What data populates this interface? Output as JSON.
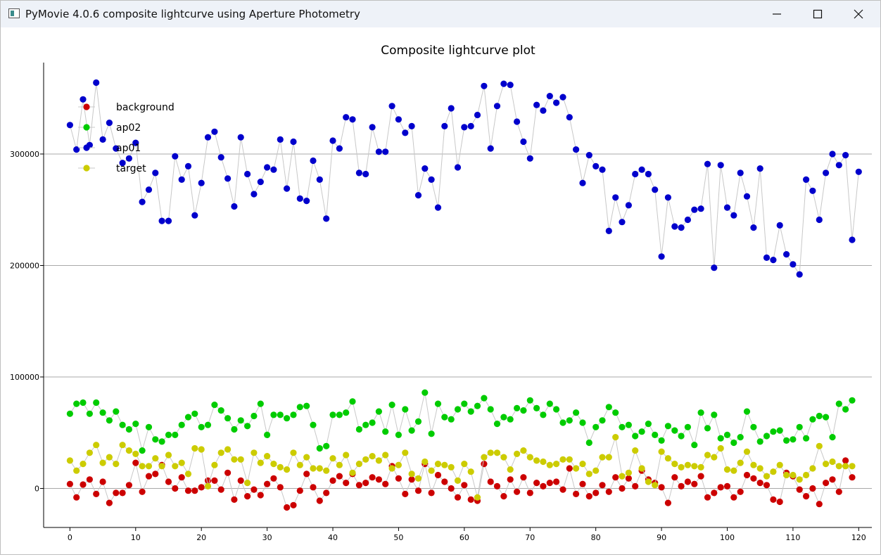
{
  "window": {
    "title": "PyMovie 4.0.6 composite lightcurve using Aperture Photometry",
    "controls": [
      "minimize-icon",
      "maximize-icon",
      "close-icon"
    ]
  },
  "chart_data": {
    "type": "scatter",
    "title": "Composite lightcurve plot",
    "xlabel": "",
    "ylabel": "",
    "xlim": [
      -4,
      122
    ],
    "ylim": [
      -35000,
      382000
    ],
    "xticks": [
      0,
      10,
      20,
      30,
      40,
      50,
      60,
      70,
      80,
      90,
      100,
      110,
      120
    ],
    "yticks": [
      0,
      100000,
      200000,
      300000
    ],
    "grid": "horizontal",
    "legend": "top-left",
    "connect_points": true,
    "line_color": "#c8c8c8",
    "series": [
      {
        "name": "background",
        "color": "#cc0000",
        "values": [
          4000,
          -8000,
          3500,
          8000,
          -5000,
          6000,
          -13000,
          -4000,
          -4000,
          3000,
          23000,
          -3000,
          11000,
          13000,
          21000,
          6000,
          0,
          10000,
          -2000,
          -2000,
          1000,
          7000,
          7000,
          -1000,
          14000,
          -10000,
          7000,
          -7000,
          -1000,
          -6000,
          4000,
          9000,
          1000,
          -17000,
          -15000,
          -2000,
          13000,
          1000,
          -11000,
          -4000,
          7000,
          11000,
          5000,
          13000,
          3000,
          5000,
          10000,
          8000,
          4000,
          20000,
          9000,
          -5000,
          8000,
          -2000,
          22000,
          -4000,
          12000,
          6000,
          0,
          -8000,
          3000,
          -10000,
          -11000,
          22000,
          6000,
          2000,
          -7000,
          8000,
          -3000,
          10000,
          -4000,
          5000,
          2000,
          5000,
          6000,
          -1000,
          18000,
          -5000,
          4000,
          -7000,
          -4000,
          3000,
          -3000,
          10000,
          0,
          9000,
          2000,
          16000,
          8000,
          5000,
          1000,
          -13000,
          10000,
          2000,
          6000,
          4000,
          11000,
          -8000,
          -4000,
          1000,
          2000,
          -8000,
          -3000,
          12000,
          9000,
          5000,
          3000,
          -10000,
          -12000,
          14000,
          11000,
          -1000,
          -7000,
          0,
          -14000,
          5000,
          8000,
          -3000,
          25000,
          10000
        ]
      },
      {
        "name": "ap02",
        "color": "#00cc00",
        "values": [
          67000,
          76000,
          77000,
          67000,
          77000,
          68000,
          61000,
          69000,
          57000,
          53000,
          58000,
          34000,
          55000,
          44000,
          42000,
          48000,
          48000,
          57000,
          64000,
          67000,
          55000,
          57000,
          75000,
          70000,
          63000,
          53000,
          61000,
          56000,
          65000,
          76000,
          48000,
          66000,
          66000,
          63000,
          66000,
          73000,
          74000,
          57000,
          36000,
          38000,
          66000,
          66000,
          68000,
          78000,
          53000,
          57000,
          59000,
          69000,
          51000,
          75000,
          48000,
          71000,
          52000,
          60000,
          86000,
          49000,
          76000,
          64000,
          62000,
          71000,
          76000,
          69000,
          74000,
          81000,
          71000,
          58000,
          64000,
          62000,
          72000,
          70000,
          79000,
          72000,
          66000,
          76000,
          71000,
          59000,
          61000,
          68000,
          59000,
          41000,
          55000,
          61000,
          73000,
          68000,
          55000,
          57000,
          47000,
          51000,
          58000,
          48000,
          43000,
          56000,
          52000,
          47000,
          55000,
          39000,
          68000,
          54000,
          66000,
          45000,
          48000,
          41000,
          46000,
          69000,
          55000,
          42000,
          47000,
          51000,
          52000,
          43000,
          44000,
          55000,
          45000,
          62000,
          65000,
          64000,
          46000,
          76000,
          71000,
          79000
        ]
      },
      {
        "name": "ap01",
        "color": "#0000cc",
        "values": [
          326000,
          304000,
          349000,
          308000,
          364000,
          313000,
          328000,
          305000,
          292000,
          296000,
          310000,
          257000,
          268000,
          283000,
          240000,
          240000,
          298000,
          277000,
          289000,
          245000,
          274000,
          315000,
          320000,
          297000,
          278000,
          253000,
          315000,
          282000,
          264000,
          275000,
          288000,
          286000,
          313000,
          269000,
          311000,
          260000,
          258000,
          294000,
          277000,
          242000,
          312000,
          305000,
          333000,
          331000,
          283000,
          282000,
          324000,
          302000,
          302000,
          343000,
          331000,
          319000,
          325000,
          263000,
          287000,
          277000,
          252000,
          325000,
          341000,
          288000,
          324000,
          325000,
          335000,
          361000,
          305000,
          343000,
          363000,
          362000,
          329000,
          311000,
          296000,
          344000,
          339000,
          352000,
          346000,
          351000,
          333000,
          304000,
          274000,
          299000,
          289000,
          286000,
          231000,
          261000,
          239000,
          254000,
          282000,
          286000,
          282000,
          268000,
          208000,
          261000,
          235000,
          234000,
          241000,
          250000,
          251000,
          291000,
          198000,
          290000,
          252000,
          245000,
          283000,
          262000,
          234000,
          287000,
          207000,
          205000,
          236000,
          210000,
          201000,
          192000,
          277000,
          267000,
          241000,
          283000,
          300000,
          290000,
          299000,
          223000,
          284000
        ]
      },
      {
        "name": "target",
        "color": "#cccc00",
        "values": [
          25000,
          16000,
          22000,
          32000,
          39000,
          23000,
          28000,
          22000,
          39000,
          34000,
          31000,
          20000,
          20000,
          27000,
          20000,
          30000,
          20000,
          23000,
          13000,
          36000,
          35000,
          2000,
          21000,
          32000,
          35000,
          26000,
          26000,
          5000,
          32000,
          23000,
          29000,
          22000,
          19000,
          17000,
          32000,
          21000,
          28000,
          18000,
          18000,
          16000,
          27000,
          21000,
          30000,
          14000,
          22000,
          26000,
          29000,
          25000,
          30000,
          18000,
          21000,
          32000,
          13000,
          9000,
          24000,
          16000,
          22000,
          21000,
          19000,
          7000,
          22000,
          15000,
          -8000,
          28000,
          32000,
          32000,
          28000,
          17000,
          31000,
          34000,
          28000,
          25000,
          24000,
          21000,
          22000,
          26000,
          26000,
          18000,
          22000,
          13000,
          16000,
          28000,
          28000,
          46000,
          11000,
          14000,
          34000,
          18000,
          6000,
          3000,
          33000,
          27000,
          22000,
          19000,
          21000,
          20000,
          19000,
          30000,
          28000,
          36000,
          17000,
          16000,
          23000,
          33000,
          21000,
          18000,
          11000,
          15000,
          21000,
          12000,
          12000,
          8000,
          12000,
          18000,
          38000,
          22000,
          24000,
          20000,
          20000,
          20000
        ]
      }
    ]
  }
}
